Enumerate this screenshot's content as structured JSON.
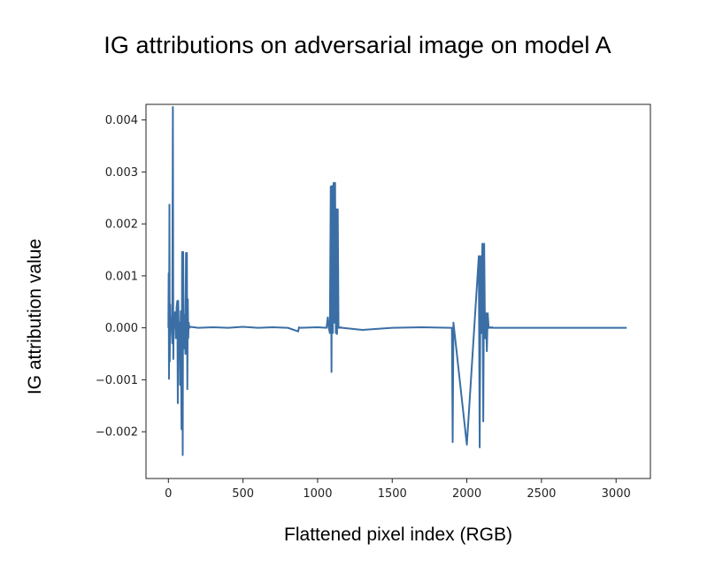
{
  "chart_data": {
    "type": "line",
    "title": "IG attributions on adversarial image on model A",
    "xlabel": "Flattened pixel index (RGB)",
    "ylabel": "IG attribution value",
    "xlim": [
      -150,
      3230
    ],
    "ylim": [
      -0.0029,
      0.0043
    ],
    "xticks": [
      0,
      500,
      1000,
      1500,
      2000,
      2500,
      3000
    ],
    "xtick_labels": [
      "0",
      "500",
      "1000",
      "1500",
      "2000",
      "2500",
      "3000"
    ],
    "yticks": [
      -0.002,
      -0.001,
      0.0,
      0.001,
      0.002,
      0.003,
      0.004
    ],
    "ytick_labels": [
      "−0.002",
      "−0.001",
      "0.000",
      "0.001",
      "0.002",
      "0.003",
      "0.004"
    ],
    "grid": false,
    "series": [
      {
        "color": "#3a6ea5",
        "x": [
          0,
          2,
          4,
          7,
          9,
          12,
          15,
          18,
          22,
          26,
          30,
          33,
          36,
          40,
          45,
          50,
          55,
          60,
          63,
          66,
          70,
          74,
          78,
          83,
          88,
          92,
          96,
          99,
          102,
          106,
          110,
          114,
          118,
          121,
          124,
          127,
          130,
          133,
          136,
          140,
          148,
          200,
          300,
          400,
          500,
          600,
          700,
          800,
          870,
          875,
          880,
          1000,
          1060,
          1068,
          1075,
          1082,
          1088,
          1093,
          1097,
          1102,
          1107,
          1112,
          1117,
          1122,
          1126,
          1130,
          1135,
          1140,
          1145,
          1150,
          1156,
          1160,
          1165,
          1300,
          1500,
          1700,
          1900,
          1905,
          1910,
          2000,
          2080,
          2086,
          2092,
          2098,
          2104,
          2110,
          2116,
          2122,
          2128,
          2134,
          2140,
          2146,
          2152,
          2158,
          2164,
          2170,
          2176,
          2182,
          2188,
          2300,
          2500,
          2700,
          2900,
          3071
        ],
        "y": [
          0,
          0.00105,
          -0.00098,
          0.00237,
          -0.00065,
          0.00045,
          0,
          0.0002,
          0,
          -0.0003,
          0.00425,
          -0.0006,
          0.0002,
          0,
          0.0003,
          -0.0002,
          0.0004,
          0.00052,
          -0.00145,
          0.00052,
          -0.0001,
          0.0001,
          -0.0011,
          0.00032,
          -0.00195,
          0.00146,
          -0.00245,
          0.00146,
          0.0003,
          -0.0004,
          0.00025,
          -0.0005,
          0.00144,
          -0.0005,
          0.00144,
          -0.00118,
          0.00055,
          -0.0002,
          0.0001,
          0,
          2e-05,
          0,
          1e-05,
          0,
          2e-05,
          0,
          1e-05,
          0,
          -7e-05,
          1e-05,
          0,
          1e-05,
          0,
          0.0002,
          0,
          -0.0001,
          0.00272,
          -0.00085,
          0.00273,
          -0.0001,
          0.00279,
          0.0001,
          0.00279,
          -0.0001,
          0.00228,
          -0.00012,
          0.00228,
          0,
          1e-05,
          0,
          1e-05,
          0,
          0,
          -4e-05,
          0,
          1e-05,
          0,
          -0.0022,
          0.0001,
          -0.00225,
          0.00138,
          -0.0023,
          0.00138,
          -0.0001,
          0.00162,
          -0.0018,
          0.00162,
          -0.0002,
          0.00028,
          -0.00045,
          0.00028,
          0,
          0,
          1e-05,
          0,
          1e-05,
          0,
          0,
          0,
          0,
          0,
          0,
          0,
          0
        ]
      }
    ]
  }
}
